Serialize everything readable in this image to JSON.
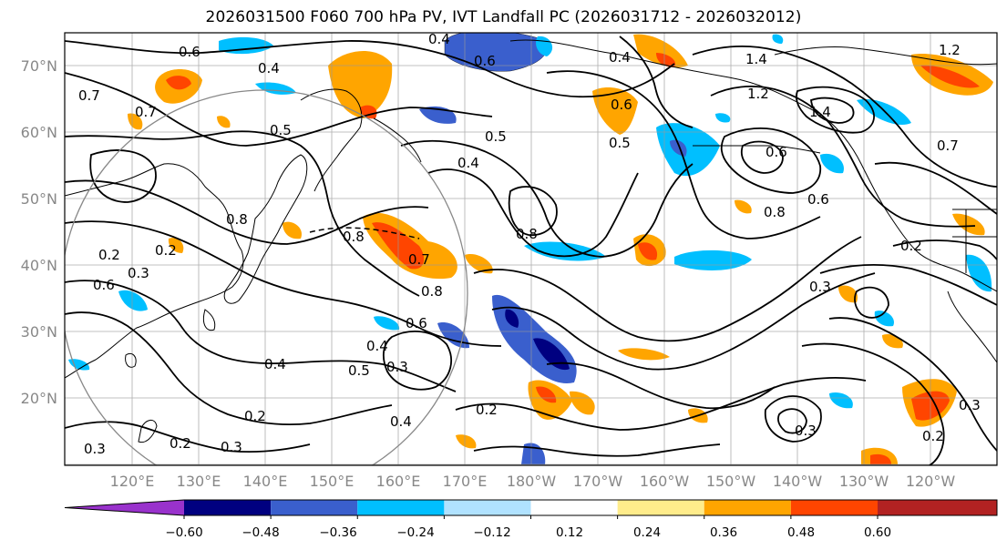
{
  "title": "2026031500 F060 700 hPa PV, IVT Landfall PC (2026031712 - 2026032012)",
  "lat_ticks": [
    "70°N",
    "60°N",
    "50°N",
    "40°N",
    "30°N",
    "20°N"
  ],
  "lon_ticks": [
    "120°E",
    "130°E",
    "140°E",
    "150°E",
    "160°E",
    "170°E",
    "180°W",
    "170°W",
    "160°W",
    "150°W",
    "140°W",
    "130°W",
    "120°W"
  ],
  "colorbar": {
    "ticks": [
      "−0.60",
      "−0.48",
      "−0.36",
      "−0.24",
      "−0.12",
      "0.12",
      "0.24",
      "0.36",
      "0.48",
      "0.60"
    ],
    "colors": [
      "#9932cc",
      "#000080",
      "#3a5fcd",
      "#00bfff",
      "#b0e2ff",
      "#ffffff",
      "#ffec8b",
      "#ffa500",
      "#ff4500",
      "#b22222",
      "#ff82ab"
    ]
  },
  "contour_labels": [
    "0.6",
    "0.4",
    "0.7",
    "0.7",
    "0.2",
    "0.2",
    "0.3",
    "0.6",
    "0.8",
    "0.7",
    "0.8",
    "0.6",
    "0.4",
    "0.5",
    "0.3",
    "0.4",
    "0.5",
    "0.8",
    "0.5",
    "0.4",
    "0.6",
    "0.4",
    "0.6",
    "0.5",
    "1.2",
    "1.4",
    "1.4",
    "1.2",
    "0.6",
    "0.8",
    "0.6",
    "0.7",
    "0.2",
    "0.3",
    "0.2",
    "0.3",
    "0.2",
    "0.3",
    "0.2",
    "0.3",
    "0.4",
    "0.2",
    "0.3",
    "0.4",
    "0.8"
  ]
}
